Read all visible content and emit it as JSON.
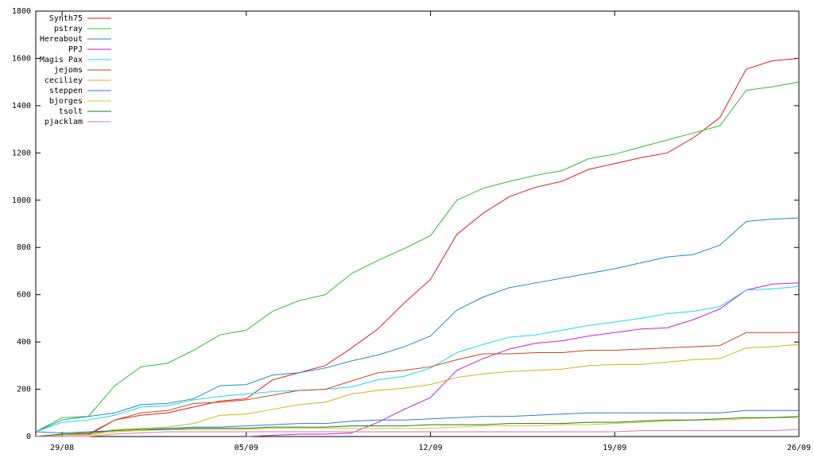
{
  "chart_data": {
    "type": "line",
    "categories": [
      null,
      "29/08",
      null,
      null,
      null,
      null,
      null,
      null,
      "05/09",
      null,
      null,
      null,
      null,
      null,
      null,
      "12/09",
      null,
      null,
      null,
      null,
      null,
      null,
      "19/09",
      null,
      null,
      null,
      null,
      null,
      null,
      "26/09"
    ],
    "ylim": [
      0,
      1800
    ],
    "yticks": [
      0,
      200,
      400,
      600,
      800,
      1000,
      1200,
      1400,
      1600,
      1800
    ],
    "legend": "top-left",
    "series": [
      {
        "name": "Synth75",
        "color": "#e41a1c",
        "values": [
          0,
          10,
          10,
          70,
          90,
          100,
          125,
          150,
          160,
          240,
          270,
          300,
          375,
          455,
          565,
          665,
          855,
          945,
          1015,
          1055,
          1080,
          1130,
          1155,
          1180,
          1200,
          1265,
          1350,
          1555,
          1590,
          1600
        ]
      },
      {
        "name": "pstray",
        "color": "#2cbf2c",
        "values": [
          20,
          80,
          85,
          215,
          295,
          310,
          365,
          430,
          450,
          530,
          575,
          600,
          690,
          745,
          795,
          850,
          1000,
          1050,
          1080,
          1105,
          1125,
          1175,
          1195,
          1225,
          1255,
          1285,
          1315,
          1465,
          1480,
          1500
        ]
      },
      {
        "name": "Hereabout",
        "color": "#1e88d0",
        "values": [
          20,
          70,
          85,
          100,
          135,
          140,
          160,
          215,
          220,
          260,
          270,
          290,
          320,
          345,
          380,
          425,
          535,
          590,
          630,
          650,
          670,
          690,
          710,
          735,
          760,
          770,
          810,
          910,
          920,
          925
        ]
      },
      {
        "name": "PPJ",
        "color": "#c71ed6",
        "values": [
          null,
          null,
          null,
          null,
          null,
          null,
          null,
          null,
          0,
          5,
          10,
          10,
          15,
          60,
          115,
          165,
          280,
          330,
          370,
          395,
          405,
          425,
          440,
          455,
          460,
          495,
          540,
          620,
          645,
          650
        ]
      },
      {
        "name": "Magis Pax",
        "color": "#1ed6e0",
        "values": [
          20,
          60,
          70,
          90,
          125,
          130,
          155,
          170,
          180,
          190,
          195,
          200,
          210,
          240,
          255,
          290,
          355,
          390,
          420,
          430,
          450,
          470,
          485,
          500,
          520,
          530,
          550,
          620,
          625,
          635
        ]
      },
      {
        "name": "jejoms",
        "color": "#c8461e",
        "values": [
          0,
          5,
          5,
          70,
          100,
          110,
          140,
          145,
          155,
          175,
          195,
          200,
          235,
          270,
          280,
          295,
          325,
          350,
          350,
          355,
          355,
          365,
          365,
          370,
          375,
          380,
          385,
          440,
          440,
          440
        ]
      },
      {
        "name": "ceciliey",
        "color": "#c8b41e",
        "values": [
          0,
          5,
          5,
          30,
          35,
          40,
          55,
          90,
          95,
          115,
          135,
          145,
          180,
          195,
          205,
          220,
          250,
          265,
          275,
          280,
          285,
          300,
          305,
          305,
          315,
          325,
          330,
          375,
          380,
          390
        ]
      },
      {
        "name": "steppen",
        "color": "#3278d2",
        "values": [
          20,
          15,
          20,
          25,
          30,
          35,
          40,
          40,
          45,
          50,
          55,
          55,
          65,
          70,
          70,
          75,
          80,
          85,
          85,
          90,
          95,
          100,
          100,
          100,
          100,
          100,
          100,
          110,
          110,
          110
        ]
      },
      {
        "name": "bjorges",
        "color": "#dcc81e",
        "values": [
          0,
          5,
          5,
          20,
          25,
          30,
          30,
          30,
          30,
          35,
          35,
          35,
          35,
          35,
          35,
          35,
          40,
          45,
          45,
          45,
          50,
          50,
          55,
          60,
          65,
          70,
          70,
          75,
          80,
          80
        ]
      },
      {
        "name": "tsolt",
        "color": "#1e7a1e",
        "values": [
          0,
          10,
          15,
          25,
          30,
          30,
          35,
          35,
          35,
          40,
          40,
          40,
          45,
          45,
          45,
          50,
          50,
          50,
          55,
          55,
          55,
          60,
          60,
          65,
          70,
          70,
          75,
          80,
          80,
          85
        ]
      },
      {
        "name": "pjacklam",
        "color": "#d27ab4",
        "values": [
          0,
          0,
          0,
          10,
          15,
          20,
          20,
          20,
          20,
          20,
          20,
          20,
          20,
          20,
          20,
          20,
          20,
          20,
          20,
          20,
          20,
          20,
          20,
          25,
          25,
          25,
          25,
          25,
          25,
          30
        ]
      }
    ]
  }
}
